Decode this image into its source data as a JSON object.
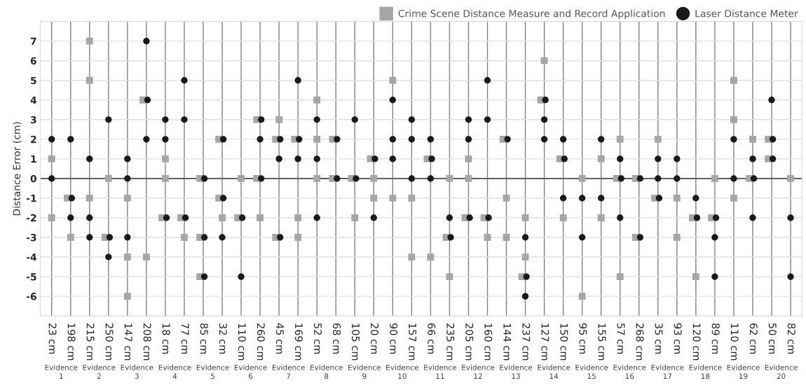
{
  "chart_data": {
    "type": "scatter",
    "ylabel": "Distance Error (cm)",
    "categories": [
      "23 cm",
      "198 cm",
      "215 cm",
      "250 cm",
      "147 cm",
      "208 cm",
      "18 cm",
      "77 cm",
      "85 cm",
      "32 cm",
      "110 cm",
      "260 cm",
      "45 cm",
      "169 cm",
      "52 cm",
      "68 cm",
      "105 cm",
      "20 cm",
      "90 cm",
      "157 cm",
      "66 cm",
      "235 cm",
      "205 cm",
      "160 cm",
      "144 cm",
      "237 cm",
      "127 cm",
      "150 cm",
      "95 cm",
      "155 cm",
      "57 cm",
      "268 cm",
      "35 cm",
      "93 cm",
      "120 cm",
      "89 cm",
      "110 cm",
      "62 cm",
      "50 cm",
      "82 cm"
    ],
    "series": [
      {
        "name": "Crime Scene Distance Measure and Record Application",
        "color": "#a6a6a6",
        "marker": "square",
        "values": [
          1,
          -1,
          7,
          0,
          -1,
          4,
          1,
          -2,
          0,
          2,
          0,
          3,
          3,
          2,
          4,
          2,
          0,
          1,
          5,
          -1,
          1,
          0,
          1,
          -2,
          2,
          -2,
          6,
          1,
          0,
          1,
          2,
          0,
          2,
          -1,
          -2,
          0,
          5,
          2,
          2,
          0
        ]
      },
      {
        "color": "#a6a6a6",
        "marker": "square",
        "values": [
          -2,
          -3,
          5,
          -3,
          -4,
          -4,
          0,
          -3,
          -3,
          -1,
          -2,
          0,
          2,
          -2,
          2,
          0,
          -2,
          0,
          -1,
          -4,
          -4,
          -3,
          0,
          -3,
          -1,
          -4,
          4,
          -2,
          -6,
          -2,
          0,
          -3,
          -1,
          -3,
          -5,
          -2,
          3,
          0,
          1,
          null
        ]
      },
      {
        "color": "#a6a6a6",
        "marker": "square",
        "values": [
          null,
          null,
          -1,
          null,
          -6,
          null,
          -2,
          null,
          -5,
          -2,
          null,
          -2,
          -3,
          -3,
          0,
          null,
          null,
          -1,
          null,
          null,
          null,
          -5,
          -2,
          null,
          -3,
          -5,
          null,
          null,
          null,
          null,
          -5,
          null,
          null,
          null,
          null,
          null,
          -1,
          null,
          null,
          null
        ]
      },
      {
        "name": "Laser Distance Meter",
        "color": "#1a1a1a",
        "marker": "circle",
        "values": [
          2,
          2,
          1,
          3,
          1,
          7,
          3,
          5,
          0,
          2,
          -2,
          3,
          2,
          5,
          3,
          2,
          3,
          1,
          4,
          3,
          2,
          -2,
          3,
          5,
          2,
          -3,
          4,
          2,
          -1,
          2,
          1,
          0,
          1,
          1,
          -1,
          -2,
          2,
          1,
          4,
          -2
        ]
      },
      {
        "color": "#1a1a1a",
        "marker": "circle",
        "values": [
          0,
          -1,
          -2,
          -3,
          0,
          4,
          2,
          3,
          -3,
          -1,
          -5,
          2,
          1,
          2,
          1,
          0,
          0,
          -2,
          2,
          2,
          1,
          -3,
          2,
          3,
          null,
          -5,
          3,
          1,
          -3,
          -1,
          0,
          -3,
          0,
          0,
          -2,
          -3,
          0,
          0,
          2,
          -5
        ]
      },
      {
        "color": "#1a1a1a",
        "marker": "circle",
        "values": [
          null,
          -2,
          -3,
          -4,
          -3,
          2,
          -2,
          -2,
          -5,
          -3,
          null,
          0,
          -3,
          1,
          -2,
          null,
          null,
          null,
          1,
          0,
          0,
          null,
          -2,
          -2,
          null,
          -6,
          2,
          -1,
          null,
          null,
          -2,
          null,
          -1,
          null,
          null,
          -5,
          null,
          -2,
          1,
          null
        ]
      }
    ],
    "ylim": [
      -7,
      8
    ],
    "yticks": [
      -6,
      -5,
      -4,
      -3,
      -2,
      -1,
      0,
      1,
      2,
      3,
      4,
      5,
      6,
      7
    ],
    "ref_lines": [
      {
        "axis": "y",
        "value": 0,
        "color": "#606060"
      }
    ],
    "grid": true,
    "legend": "top right",
    "annotations": [
      "Evidence 1",
      "Evidence 2",
      "Evidence 3",
      "Evidence 4",
      "Evidence 5",
      "Evidence 6",
      "Evidence 7",
      "Evidence 8",
      "Evidence 9",
      "Evidence 10",
      "Evidence 11",
      "Evidence 12",
      "Evidence 13",
      "Evidence 14",
      "Evidence 15",
      "Evidence 16",
      "Evidence 17",
      "Evidence 18",
      "Evidence 19",
      "Evidence 20"
    ]
  }
}
